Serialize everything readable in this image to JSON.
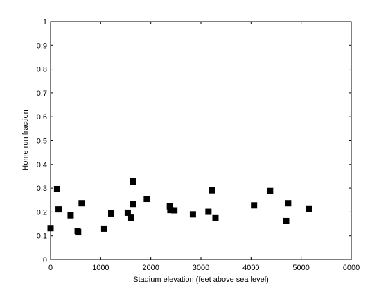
{
  "chart_data": {
    "type": "scatter",
    "title": "",
    "xlabel": "Stadium elevation (feet above sea level)",
    "ylabel": "Home run fraction",
    "xlim": [
      0,
      6000
    ],
    "ylim": [
      0,
      1
    ],
    "x_ticks": [
      0,
      1000,
      2000,
      3000,
      4000,
      5000,
      6000
    ],
    "y_ticks": [
      0,
      0.1,
      0.2,
      0.3,
      0.4,
      0.5,
      0.6,
      0.7,
      0.8,
      0.9,
      1
    ],
    "x_tick_labels": [
      "0",
      "1000",
      "2000",
      "3000",
      "4000",
      "5000",
      "6000"
    ],
    "y_tick_labels": [
      "0",
      "0.1",
      "0.2",
      "0.3",
      "0.4",
      "0.5",
      "0.6",
      "0.7",
      "0.8",
      "0.9",
      "1"
    ],
    "grid": false,
    "marker": "square",
    "marker_color": "#000000",
    "series": [
      {
        "points": [
          {
            "x": 0,
            "y": 0.132
          },
          {
            "x": 130,
            "y": 0.296
          },
          {
            "x": 160,
            "y": 0.211
          },
          {
            "x": 400,
            "y": 0.186
          },
          {
            "x": 540,
            "y": 0.121
          },
          {
            "x": 550,
            "y": 0.115
          },
          {
            "x": 620,
            "y": 0.237
          },
          {
            "x": 1070,
            "y": 0.13
          },
          {
            "x": 1210,
            "y": 0.194
          },
          {
            "x": 1540,
            "y": 0.197
          },
          {
            "x": 1610,
            "y": 0.176
          },
          {
            "x": 1640,
            "y": 0.234
          },
          {
            "x": 1650,
            "y": 0.328
          },
          {
            "x": 1920,
            "y": 0.255
          },
          {
            "x": 2380,
            "y": 0.224
          },
          {
            "x": 2390,
            "y": 0.208
          },
          {
            "x": 2470,
            "y": 0.207
          },
          {
            "x": 2840,
            "y": 0.19
          },
          {
            "x": 3150,
            "y": 0.201
          },
          {
            "x": 3220,
            "y": 0.291
          },
          {
            "x": 3290,
            "y": 0.174
          },
          {
            "x": 4060,
            "y": 0.228
          },
          {
            "x": 4380,
            "y": 0.288
          },
          {
            "x": 4700,
            "y": 0.162
          },
          {
            "x": 4740,
            "y": 0.237
          },
          {
            "x": 5150,
            "y": 0.212
          }
        ]
      }
    ]
  }
}
